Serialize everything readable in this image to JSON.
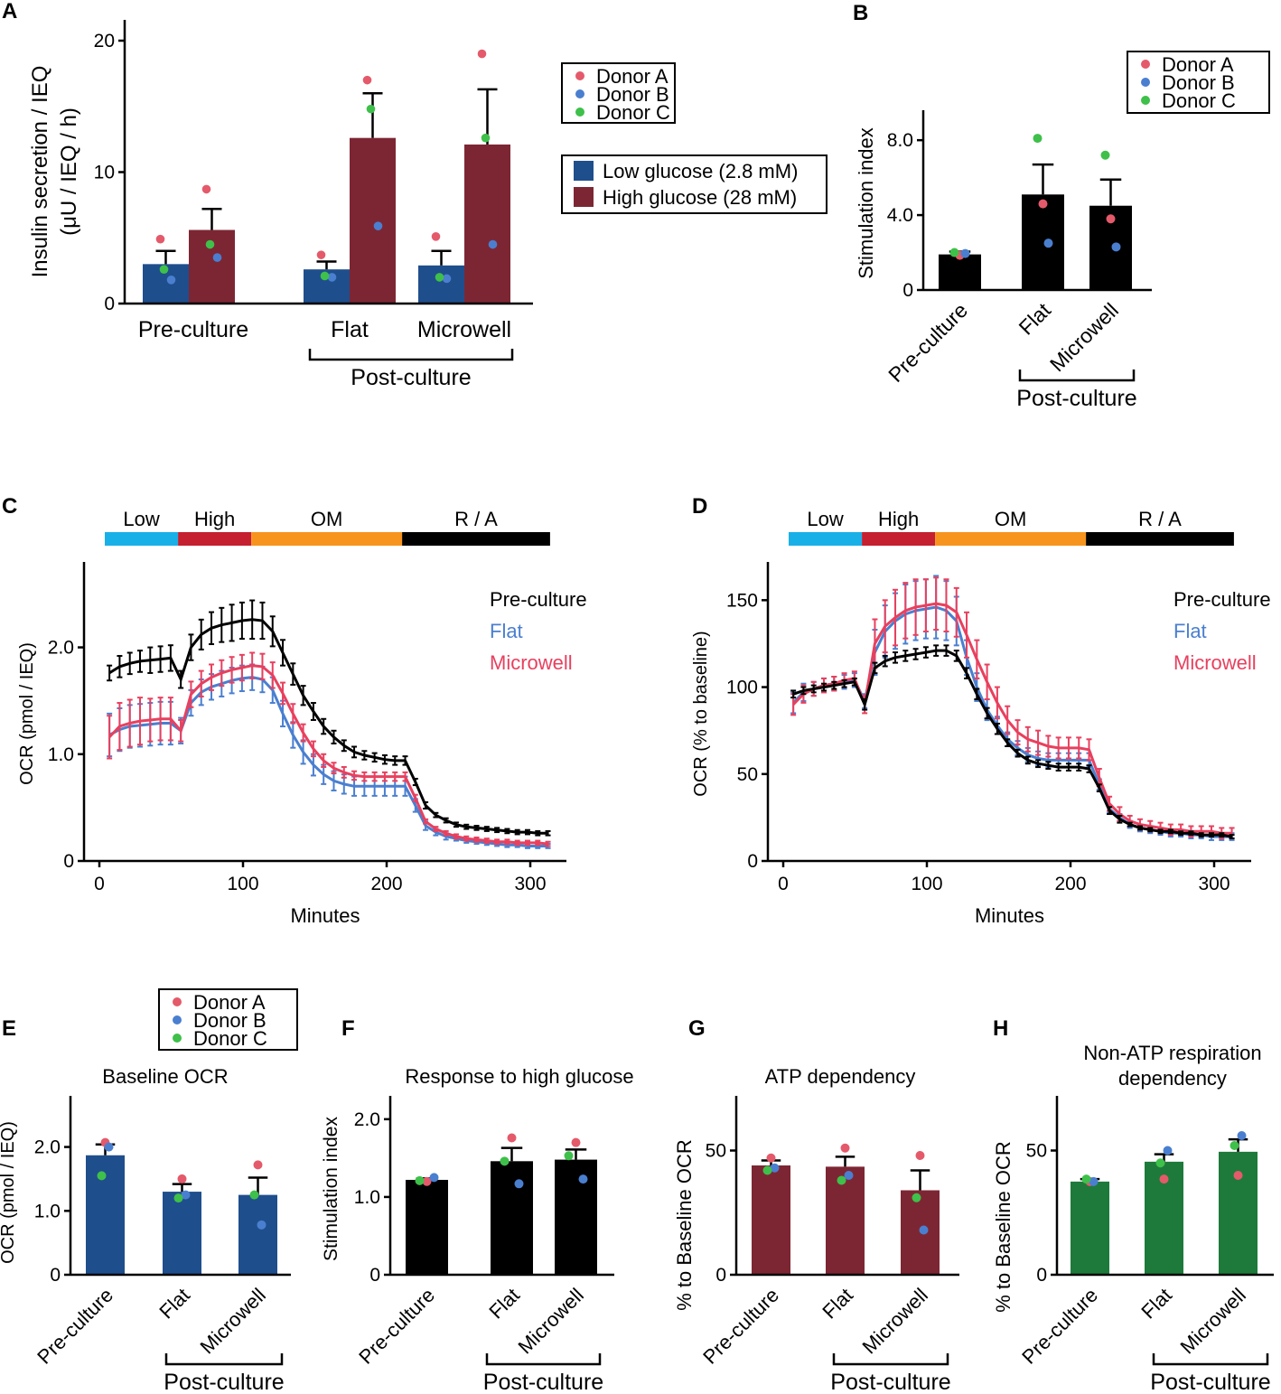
{
  "colors": {
    "donorA": "#e45a6a",
    "donorB": "#4a7fd0",
    "donorC": "#3ec04a",
    "low_bar": "#1f4e8c",
    "high_bar": "#7d2633",
    "black": "#000000",
    "dark_red": "#7d2633",
    "green": "#1e7a3a",
    "seg_low": "#19b0e8",
    "seg_high": "#c4202f",
    "seg_om": "#f7941d",
    "seg_ra": "#000000",
    "flat": "#4a7fd0",
    "micro": "#e8405e"
  },
  "chart_data": [
    {
      "id": "A",
      "type": "bar",
      "panel_label": "A",
      "ylabel": "Insulin secretion / IEQ",
      "ylabel2": "(μU / IEQ / h)",
      "ylim": [
        0,
        20
      ],
      "yticks": [
        "0",
        "10",
        "20"
      ],
      "categories": [
        "Pre-culture",
        "Flat",
        "Microwell"
      ],
      "group_label": "Post-culture",
      "series": [
        {
          "name": "Low glucose (2.8 mM)",
          "values": [
            3.0,
            2.6,
            2.9
          ],
          "sem": [
            1.0,
            0.6,
            1.1
          ],
          "donors": {
            "A": [
              4.9,
              3.7,
              5.1
            ],
            "B": [
              1.8,
              2.0,
              1.9
            ],
            "C": [
              2.6,
              2.1,
              2.0
            ]
          }
        },
        {
          "name": "High glucose (28 mM)",
          "values": [
            5.6,
            12.6,
            12.1
          ],
          "sem": [
            1.6,
            3.4,
            4.2
          ],
          "donors": {
            "A": [
              8.7,
              17.0,
              19.0
            ],
            "B": [
              3.5,
              5.9,
              4.5
            ],
            "C": [
              4.5,
              14.8,
              12.6
            ]
          }
        }
      ],
      "legend_donors": [
        "Donor A",
        "Donor B",
        "Donor C"
      ]
    },
    {
      "id": "B",
      "type": "bar",
      "panel_label": "B",
      "ylabel": "Stimulation index",
      "ylim": [
        0,
        9.6
      ],
      "yticks": [
        "0",
        "4.0",
        "8.0"
      ],
      "categories": [
        "Pre-culture",
        "Flat",
        "Microwell"
      ],
      "group_label": "Post-culture",
      "values": [
        1.9,
        5.1,
        4.5
      ],
      "sem": [
        0.15,
        1.6,
        1.4
      ],
      "donors": {
        "A": [
          1.85,
          4.6,
          3.8
        ],
        "B": [
          1.95,
          2.5,
          2.3
        ],
        "C": [
          2.0,
          8.1,
          7.2
        ]
      },
      "legend_donors": [
        "Donor A",
        "Donor B",
        "Donor C"
      ]
    },
    {
      "id": "C",
      "type": "line",
      "panel_label": "C",
      "xlabel": "Minutes",
      "ylabel": "OCR (pmol / IEQ)",
      "xlim": [
        -10,
        325
      ],
      "ylim": [
        0,
        2.8
      ],
      "xticks": [
        "0",
        "100",
        "200",
        "300"
      ],
      "yticks": [
        "0",
        "1.0",
        "2.0"
      ],
      "phases": [
        "Low",
        "High",
        "OM",
        "R / A"
      ],
      "series": [
        {
          "name": "Pre-culture",
          "values": [
            1.76,
            1.82,
            1.85,
            1.87,
            1.88,
            1.89,
            1.9,
            1.7,
            2.0,
            2.12,
            2.18,
            2.21,
            2.23,
            2.25,
            2.26,
            2.25,
            2.15,
            1.95,
            1.75,
            1.55,
            1.4,
            1.26,
            1.16,
            1.08,
            1.02,
            0.99,
            0.97,
            0.95,
            0.94,
            0.94,
            0.74,
            0.52,
            0.43,
            0.38,
            0.34,
            0.32,
            0.31,
            0.3,
            0.29,
            0.28,
            0.27,
            0.27,
            0.26,
            0.26
          ],
          "err": [
            0.07,
            0.1,
            0.1,
            0.1,
            0.12,
            0.12,
            0.12,
            0.08,
            0.12,
            0.14,
            0.15,
            0.16,
            0.17,
            0.17,
            0.18,
            0.17,
            0.14,
            0.12,
            0.1,
            0.09,
            0.08,
            0.07,
            0.06,
            0.05,
            0.05,
            0.04,
            0.04,
            0.04,
            0.04,
            0.04,
            0.03,
            0.03,
            0.02,
            0.02,
            0.02,
            0.02,
            0.02,
            0.02,
            0.02,
            0.02,
            0.02,
            0.02,
            0.02,
            0.02
          ]
        },
        {
          "name": "Flat",
          "values": [
            1.18,
            1.23,
            1.26,
            1.27,
            1.28,
            1.29,
            1.29,
            1.22,
            1.48,
            1.58,
            1.63,
            1.66,
            1.69,
            1.71,
            1.72,
            1.7,
            1.6,
            1.38,
            1.18,
            1.02,
            0.9,
            0.81,
            0.75,
            0.72,
            0.7,
            0.7,
            0.7,
            0.7,
            0.7,
            0.7,
            0.52,
            0.33,
            0.27,
            0.23,
            0.21,
            0.19,
            0.18,
            0.17,
            0.16,
            0.15,
            0.15,
            0.14,
            0.14,
            0.14
          ],
          "err": [
            0.2,
            0.2,
            0.2,
            0.2,
            0.2,
            0.2,
            0.2,
            0.12,
            0.12,
            0.12,
            0.12,
            0.12,
            0.12,
            0.12,
            0.12,
            0.12,
            0.12,
            0.12,
            0.12,
            0.11,
            0.1,
            0.09,
            0.09,
            0.09,
            0.09,
            0.09,
            0.09,
            0.09,
            0.09,
            0.09,
            0.06,
            0.04,
            0.03,
            0.03,
            0.02,
            0.02,
            0.02,
            0.02,
            0.02,
            0.02,
            0.02,
            0.02,
            0.02,
            0.02
          ]
        },
        {
          "name": "Microwell",
          "values": [
            1.16,
            1.26,
            1.29,
            1.31,
            1.32,
            1.33,
            1.33,
            1.22,
            1.56,
            1.66,
            1.72,
            1.76,
            1.79,
            1.81,
            1.83,
            1.82,
            1.74,
            1.57,
            1.38,
            1.2,
            1.05,
            0.94,
            0.87,
            0.83,
            0.8,
            0.79,
            0.79,
            0.79,
            0.79,
            0.79,
            0.59,
            0.37,
            0.3,
            0.26,
            0.23,
            0.21,
            0.2,
            0.19,
            0.18,
            0.18,
            0.17,
            0.17,
            0.17,
            0.16
          ],
          "err": [
            0.2,
            0.22,
            0.22,
            0.22,
            0.2,
            0.2,
            0.2,
            0.1,
            0.12,
            0.12,
            0.12,
            0.12,
            0.12,
            0.12,
            0.12,
            0.12,
            0.12,
            0.1,
            0.09,
            0.08,
            0.07,
            0.06,
            0.05,
            0.05,
            0.04,
            0.04,
            0.04,
            0.04,
            0.04,
            0.04,
            0.03,
            0.02,
            0.02,
            0.02,
            0.02,
            0.02,
            0.02,
            0.02,
            0.02,
            0.02,
            0.02,
            0.02,
            0.02,
            0.02
          ]
        }
      ]
    },
    {
      "id": "D",
      "type": "line",
      "panel_label": "D",
      "xlabel": "Minutes",
      "ylabel": "OCR (% to baseline)",
      "xlim": [
        -10,
        325
      ],
      "ylim": [
        0,
        172
      ],
      "xticks": [
        "0",
        "100",
        "200",
        "300"
      ],
      "yticks": [
        "0",
        "50",
        "100",
        "150"
      ],
      "phases": [
        "Low",
        "High",
        "OM",
        "R / A"
      ],
      "series": [
        {
          "name": "Pre-culture",
          "values": [
            96,
            98,
            99,
            100,
            101,
            102,
            103,
            90,
            111,
            115,
            117,
            118,
            119,
            120,
            121,
            121,
            118,
            108,
            96,
            85,
            76,
            68,
            62,
            58,
            56,
            55,
            54,
            54,
            54,
            53,
            42,
            29,
            24,
            21,
            19,
            18,
            17,
            17,
            16,
            16,
            15,
            15,
            15,
            14
          ],
          "err": [
            2,
            2,
            2,
            2,
            2,
            2,
            2,
            3,
            3,
            3,
            3,
            3,
            3,
            3,
            3,
            3,
            3,
            3,
            3,
            3,
            3,
            2,
            2,
            2,
            2,
            2,
            2,
            2,
            2,
            2,
            2,
            2,
            2,
            1,
            1,
            1,
            1,
            1,
            1,
            1,
            1,
            1,
            1,
            1
          ]
        },
        {
          "name": "Flat",
          "values": [
            91,
            97,
            99,
            101,
            102,
            103,
            104,
            92,
            120,
            132,
            138,
            142,
            144,
            145,
            146,
            144,
            138,
            117,
            100,
            87,
            78,
            70,
            65,
            61,
            59,
            58,
            58,
            58,
            58,
            58,
            44,
            30,
            25,
            21,
            19,
            18,
            17,
            16,
            16,
            15,
            15,
            14,
            14,
            14
          ],
          "err": [
            6,
            5,
            4,
            4,
            4,
            4,
            4,
            4,
            13,
            15,
            16,
            17,
            17,
            17,
            18,
            17,
            14,
            10,
            8,
            6,
            5,
            4,
            4,
            4,
            4,
            4,
            4,
            4,
            4,
            4,
            3,
            2,
            2,
            2,
            2,
            2,
            2,
            2,
            2,
            2,
            2,
            2,
            2,
            2
          ]
        },
        {
          "name": "Microwell",
          "values": [
            90,
            96,
            99,
            101,
            102,
            104,
            105,
            90,
            125,
            135,
            140,
            144,
            146,
            147,
            148,
            147,
            143,
            130,
            116,
            103,
            91,
            81,
            74,
            70,
            68,
            66,
            65,
            65,
            65,
            64,
            48,
            33,
            27,
            23,
            21,
            20,
            19,
            18,
            18,
            17,
            17,
            17,
            16,
            16
          ],
          "err": [
            6,
            5,
            4,
            4,
            4,
            4,
            4,
            5,
            14,
            15,
            16,
            16,
            16,
            15,
            15,
            15,
            14,
            13,
            11,
            10,
            9,
            8,
            7,
            7,
            7,
            6,
            6,
            6,
            6,
            6,
            5,
            4,
            4,
            3,
            3,
            3,
            3,
            3,
            3,
            3,
            3,
            3,
            3,
            3
          ]
        }
      ]
    },
    {
      "id": "E",
      "type": "bar",
      "panel_label": "E",
      "title": "Baseline OCR",
      "ylabel": "OCR (pmol / IEQ)",
      "ylim": [
        0,
        2.8
      ],
      "yticks": [
        "0",
        "1.0",
        "2.0"
      ],
      "categories": [
        "Pre-culture",
        "Flat",
        "Microwell"
      ],
      "group_label": "Post-culture",
      "values": [
        1.87,
        1.3,
        1.25
      ],
      "sem": [
        0.17,
        0.12,
        0.27
      ],
      "donors": {
        "A": [
          2.07,
          1.5,
          1.72
        ],
        "B": [
          2.0,
          1.25,
          0.78
        ],
        "C": [
          1.55,
          1.2,
          1.25
        ]
      },
      "legend_donors": [
        "Donor A",
        "Donor B",
        "Donor C"
      ]
    },
    {
      "id": "F",
      "type": "bar",
      "panel_label": "F",
      "title": "Response to high glucose",
      "ylabel": "Stimulation index",
      "ylim": [
        0,
        2.3
      ],
      "yticks": [
        "0",
        "1.0",
        "2.0"
      ],
      "categories": [
        "Pre-culture",
        "Flat",
        "Microwell"
      ],
      "group_label": "Post-culture",
      "values": [
        1.22,
        1.46,
        1.48
      ],
      "sem": [
        0.02,
        0.17,
        0.13
      ],
      "donors": {
        "A": [
          1.2,
          1.76,
          1.7
        ],
        "B": [
          1.25,
          1.17,
          1.23
        ],
        "C": [
          1.21,
          1.46,
          1.53
        ]
      }
    },
    {
      "id": "G",
      "type": "bar",
      "panel_label": "G",
      "title": "ATP dependency",
      "ylabel": "% to Baseline OCR",
      "ylim": [
        0,
        72
      ],
      "yticks": [
        "0",
        "50"
      ],
      "categories": [
        "Pre-culture",
        "Flat",
        "Microwell"
      ],
      "group_label": "Post-culture",
      "values": [
        44,
        43.5,
        34
      ],
      "sem": [
        2,
        4,
        8
      ],
      "donors": {
        "A": [
          47,
          51,
          48
        ],
        "B": [
          43,
          40,
          18
        ],
        "C": [
          42,
          38,
          31
        ]
      }
    },
    {
      "id": "H",
      "type": "bar",
      "panel_label": "H",
      "title": "Non-ATP respiration",
      "title2": "dependency",
      "ylabel": "% to Baseline OCR",
      "ylim": [
        0,
        72
      ],
      "yticks": [
        "0",
        "50"
      ],
      "categories": [
        "Pre-culture",
        "Flat",
        "Microwell"
      ],
      "group_label": "Post-culture",
      "values": [
        37.5,
        45.5,
        49.5
      ],
      "sem": [
        1,
        3,
        5
      ],
      "donors": {
        "A": [
          37.5,
          38.5,
          40
        ],
        "B": [
          37.5,
          50,
          56
        ],
        "C": [
          38.5,
          45,
          52
        ]
      }
    }
  ]
}
